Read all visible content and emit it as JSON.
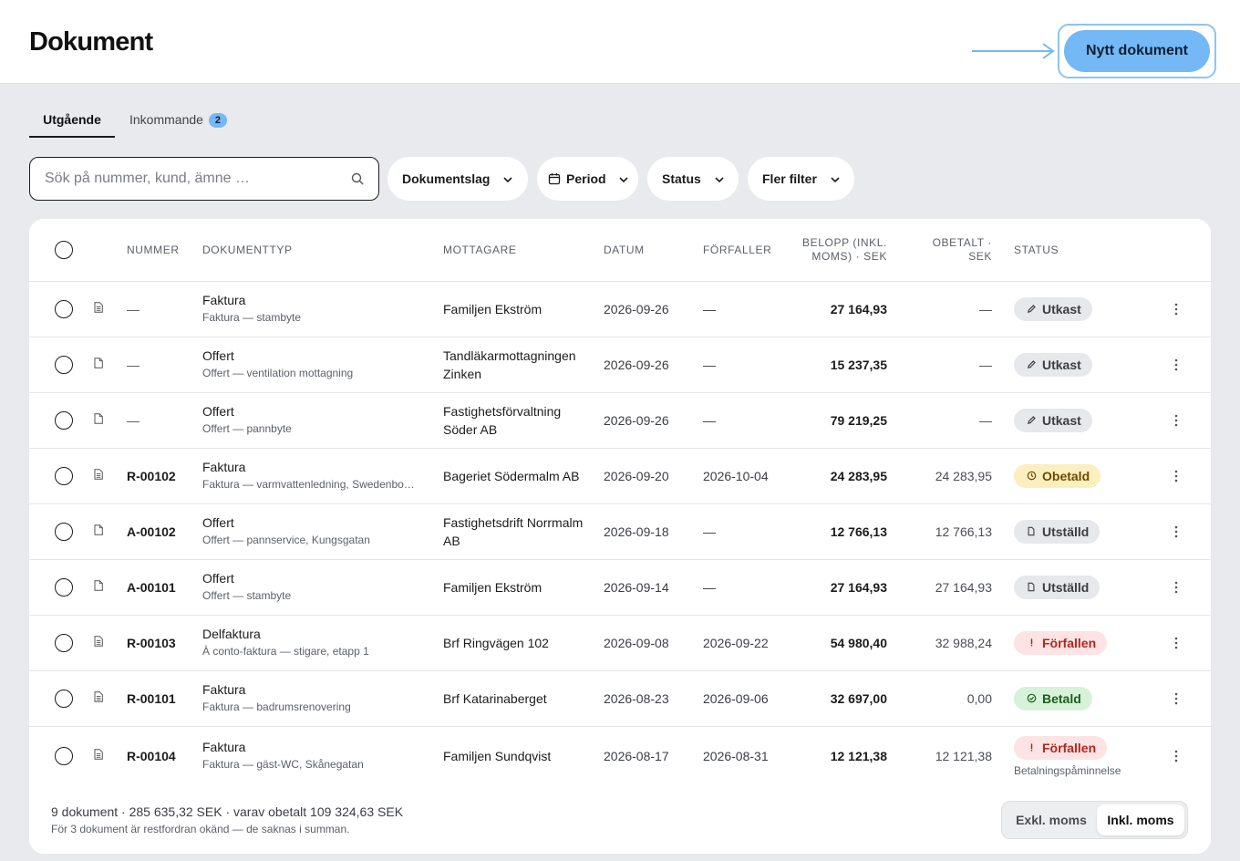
{
  "header": {
    "title": "Dokument",
    "new_document_label": "Nytt dokument"
  },
  "tabs": [
    {
      "label": "Utgående",
      "active": true
    },
    {
      "label": "Inkommande",
      "badge": "2",
      "active": false
    }
  ],
  "search": {
    "placeholder": "Sök på nummer, kund, ämne …",
    "value": ""
  },
  "filters": {
    "doctype": "Dokumentslag",
    "period": "Period",
    "status": "Status",
    "more": "Fler filter"
  },
  "columns": {
    "number": "NUMMER",
    "doctype": "DOKUMENTTYP",
    "recipient": "MOTTAGARE",
    "date": "DATUM",
    "due": "FÖRFALLER",
    "amount_1": "BELOPP (INKL.",
    "amount_2": "MOMS) · SEK",
    "unpaid_1": "OBETALT ·",
    "unpaid_2": "SEK",
    "status": "STATUS"
  },
  "rows": [
    {
      "number": "—",
      "type": "Faktura",
      "subtitle": "Faktura — stambyte",
      "recipient": "Familjen Ekström",
      "date": "2026-09-26",
      "due": "—",
      "amount": "27 164,93",
      "unpaid": "—",
      "status": "Utkast",
      "status_kind": "draft",
      "icon": "doc-lines-icon"
    },
    {
      "number": "—",
      "type": "Offert",
      "subtitle": "Offert — ventilation mottagning",
      "recipient": "Tandläkarmottagningen Zinken",
      "date": "2026-09-26",
      "due": "—",
      "amount": "15 237,35",
      "unpaid": "—",
      "status": "Utkast",
      "status_kind": "draft",
      "icon": "doc-icon"
    },
    {
      "number": "—",
      "type": "Offert",
      "subtitle": "Offert — pannbyte",
      "recipient": "Fastighetsförvaltning Söder AB",
      "date": "2026-09-26",
      "due": "—",
      "amount": "79 219,25",
      "unpaid": "—",
      "status": "Utkast",
      "status_kind": "draft",
      "icon": "doc-icon"
    },
    {
      "number": "R-00102",
      "type": "Faktura",
      "subtitle": "Faktura — varmvattenledning, Swedenbo…",
      "recipient": "Bageriet Södermalm AB",
      "date": "2026-09-20",
      "due": "2026-10-04",
      "amount": "24 283,95",
      "unpaid": "24 283,95",
      "status": "Obetald",
      "status_kind": "unpaid",
      "icon": "doc-lines-icon"
    },
    {
      "number": "A-00102",
      "type": "Offert",
      "subtitle": "Offert — pannservice, Kungsgatan",
      "recipient": "Fastighetsdrift Norrmalm AB",
      "date": "2026-09-18",
      "due": "—",
      "amount": "12 766,13",
      "unpaid": "12 766,13",
      "status": "Utställd",
      "status_kind": "issued",
      "icon": "doc-icon"
    },
    {
      "number": "A-00101",
      "type": "Offert",
      "subtitle": "Offert — stambyte",
      "recipient": "Familjen Ekström",
      "date": "2026-09-14",
      "due": "—",
      "amount": "27 164,93",
      "unpaid": "27 164,93",
      "status": "Utställd",
      "status_kind": "issued",
      "icon": "doc-icon"
    },
    {
      "number": "R-00103",
      "type": "Delfaktura",
      "subtitle": "À conto-faktura — stigare, etapp 1",
      "recipient": "Brf Ringvägen 102",
      "date": "2026-09-08",
      "due": "2026-09-22",
      "amount": "54 980,40",
      "unpaid": "32 988,24",
      "status": "Förfallen",
      "status_kind": "overdue",
      "icon": "doc-lines-icon"
    },
    {
      "number": "R-00101",
      "type": "Faktura",
      "subtitle": "Faktura — badrumsrenovering",
      "recipient": "Brf Katarinaberget",
      "date": "2026-08-23",
      "due": "2026-09-06",
      "amount": "32 697,00",
      "unpaid": "0,00",
      "status": "Betald",
      "status_kind": "paid",
      "icon": "doc-lines-icon"
    },
    {
      "number": "R-00104",
      "type": "Faktura",
      "subtitle": "Faktura — gäst-WC, Skånegatan",
      "recipient": "Familjen Sundqvist",
      "date": "2026-08-17",
      "due": "2026-08-31",
      "amount": "12 121,38",
      "unpaid": "12 121,38",
      "status": "Förfallen",
      "status_kind": "overdue",
      "note": "Betalningspåminnelse",
      "icon": "doc-lines-icon"
    }
  ],
  "footer": {
    "summary": "9 dokument · 285 635,32 SEK · varav obetalt 109 324,63 SEK",
    "note": "För 3 dokument är restfordran okänd — de saknas i summan.",
    "vat_excl": "Exkl. moms",
    "vat_incl": "Inkl. moms",
    "vat_selected": "incl"
  },
  "colors": {
    "accent": "#74b8f5",
    "draft": "#e6e8eb",
    "unpaid": "#fbefbf",
    "overdue": "#fde3e3",
    "paid": "#d6f3d9"
  }
}
